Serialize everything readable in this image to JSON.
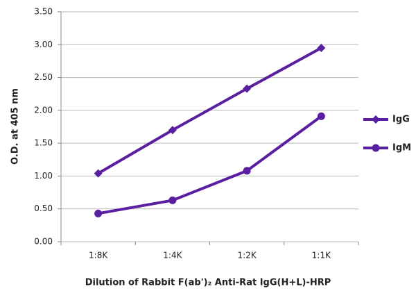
{
  "chart_data": {
    "type": "line",
    "y_label": "O.D. at 405 nm",
    "x_label": "Dilution of Rabbit F(ab')₂ Anti-Rat IgG(H+L)-HRP",
    "categories": [
      "1:8K",
      "1:4K",
      "1:2K",
      "1:1K"
    ],
    "series": [
      {
        "name": "IgG",
        "color": "#5a1ea0",
        "marker": "diamond",
        "values": [
          1.04,
          1.7,
          2.33,
          2.95
        ]
      },
      {
        "name": "IgM",
        "color": "#5a1ea0",
        "marker": "circle",
        "values": [
          0.43,
          0.63,
          1.08,
          1.91
        ]
      }
    ],
    "ylim": [
      0,
      3.5
    ],
    "yticks": [
      {
        "value": 0,
        "label": "0.00"
      },
      {
        "value": 0.5,
        "label": "0.50"
      },
      {
        "value": 1,
        "label": "1.00"
      },
      {
        "value": 1.5,
        "label": "1.50"
      },
      {
        "value": 2,
        "label": "2.00"
      },
      {
        "value": 2.5,
        "label": "2.50"
      },
      {
        "value": 3,
        "label": "3.00"
      },
      {
        "value": 3.5,
        "label": "3.50"
      }
    ],
    "grid": true,
    "legend": "right"
  }
}
